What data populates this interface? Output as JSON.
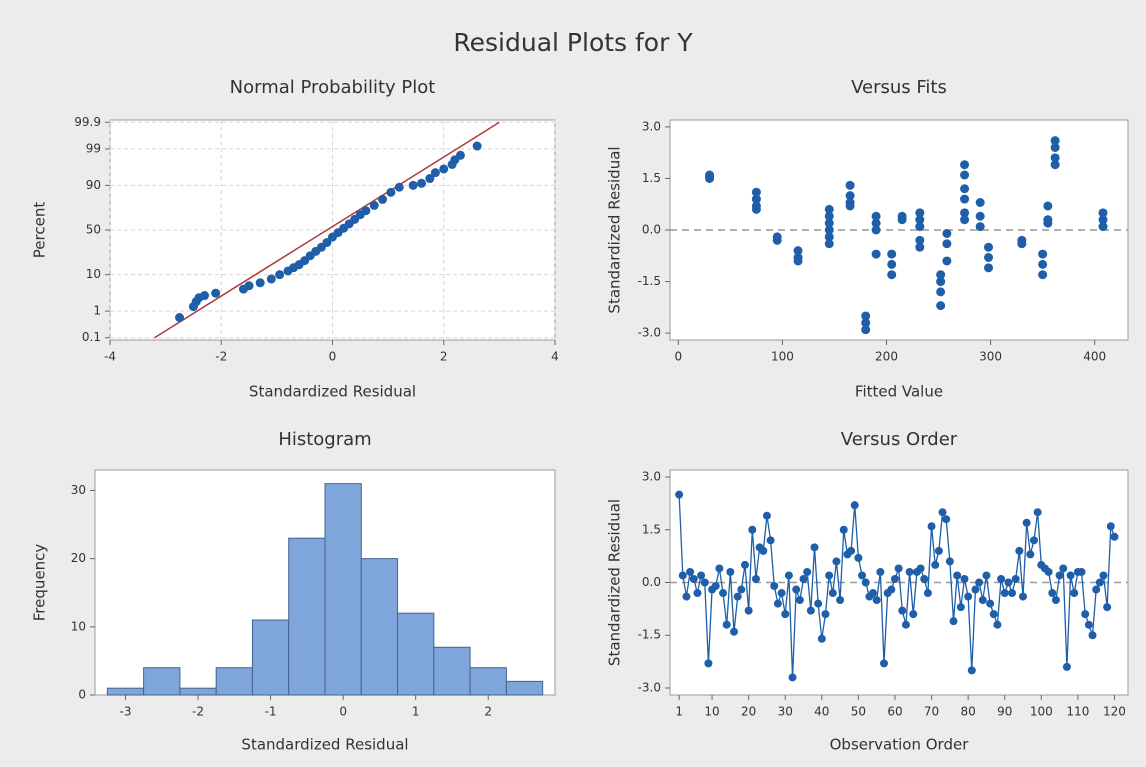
{
  "title": "Residual Plots for Y",
  "chart_data": [
    {
      "type": "scatter",
      "title": "Normal Probability Plot",
      "x_label": "Standardized Residual",
      "y_label": "Percent",
      "yscale": "probability",
      "grid": true,
      "color": "#1f5ea8",
      "xlim": [
        -4,
        4
      ],
      "xticks": [
        -4,
        -2,
        0,
        2,
        4
      ],
      "ylim": [
        0.08,
        99.92
      ],
      "yticks": [
        0.1,
        1,
        10,
        50,
        90,
        99,
        99.9
      ],
      "x": [
        -2.75,
        -2.5,
        -2.45,
        -2.4,
        -2.3,
        -2.1,
        -1.6,
        -1.5,
        -1.3,
        -1.1,
        -0.95,
        -0.8,
        -0.7,
        -0.6,
        -0.5,
        -0.4,
        -0.3,
        -0.2,
        -0.1,
        0,
        0.1,
        0.2,
        0.3,
        0.4,
        0.5,
        0.6,
        0.75,
        0.9,
        1.05,
        1.2,
        1.45,
        1.6,
        1.75,
        1.85,
        2.0,
        2.15,
        2.2,
        2.3,
        2.6
      ],
      "values": [
        0.6,
        1.4,
        2.0,
        2.6,
        3.0,
        3.5,
        4.5,
        5.5,
        6.5,
        8,
        10,
        12,
        14,
        16,
        19,
        23,
        27,
        31,
        36,
        42,
        47,
        52,
        57,
        62,
        67,
        71,
        76,
        81,
        86,
        89,
        90,
        91,
        93,
        95,
        96,
        97,
        97.8,
        98.4,
        99.2
      ],
      "reference_line": {
        "x": [
          -3.2,
          3.0
        ],
        "y": [
          0.1,
          99.9
        ],
        "color": "#b03a3a"
      }
    },
    {
      "type": "scatter",
      "title": "Versus Fits",
      "x_label": "Fitted Value",
      "y_label": "Standardized Residual",
      "color": "#1f5ea8",
      "hline": 0,
      "xlim": [
        -8,
        432
      ],
      "xticks": [
        0,
        100,
        200,
        300,
        400
      ],
      "ylim": [
        -3.2,
        3.2
      ],
      "yticks": [
        {
          "value": -3,
          "label": "-3.0"
        },
        {
          "value": -1.5,
          "label": "-1.5"
        },
        {
          "value": 0,
          "label": "0.0"
        },
        {
          "value": 1.5,
          "label": "1.5"
        },
        {
          "value": 3,
          "label": "3.0"
        }
      ],
      "x": [
        30,
        30,
        30,
        75,
        75,
        75,
        75,
        95,
        95,
        115,
        115,
        115,
        145,
        145,
        145,
        145,
        145,
        145,
        165,
        165,
        165,
        165,
        180,
        180,
        180,
        190,
        190,
        190,
        190,
        205,
        205,
        205,
        215,
        215,
        232,
        232,
        232,
        232,
        232,
        252,
        252,
        252,
        252,
        258,
        258,
        258,
        275,
        275,
        275,
        275,
        275,
        275,
        290,
        290,
        290,
        298,
        298,
        298,
        330,
        330,
        350,
        350,
        350,
        355,
        355,
        355,
        362,
        362,
        362,
        362,
        408,
        408,
        408
      ],
      "values": [
        1.6,
        1.5,
        1.55,
        1.1,
        0.9,
        0.7,
        0.6,
        -0.2,
        -0.3,
        -0.6,
        -0.8,
        -0.9,
        0.6,
        0.4,
        0.2,
        0.0,
        -0.2,
        -0.4,
        1.3,
        1.0,
        0.8,
        0.7,
        -2.5,
        -2.7,
        -2.9,
        0.4,
        0.2,
        0.0,
        -0.7,
        -0.7,
        -1.0,
        -1.3,
        0.4,
        0.3,
        0.5,
        0.3,
        0.1,
        -0.3,
        -0.5,
        -1.3,
        -1.5,
        -1.8,
        -2.2,
        -0.1,
        -0.4,
        -0.9,
        1.9,
        1.6,
        1.2,
        0.9,
        0.5,
        0.3,
        0.8,
        0.4,
        0.1,
        -0.5,
        -0.8,
        -1.1,
        -0.3,
        -0.4,
        -0.7,
        -1.0,
        -1.3,
        0.7,
        0.3,
        0.2,
        2.6,
        2.4,
        2.1,
        1.9,
        0.5,
        0.3,
        0.1
      ]
    },
    {
      "type": "histogram",
      "title": "Histogram",
      "x_label": "Standardized Residual",
      "y_label": "Frequency",
      "color": "#7fa6da",
      "xlim": [
        -3.42,
        2.92
      ],
      "xticks": [
        -3,
        -2,
        -1,
        0,
        1,
        2
      ],
      "ylim": [
        0,
        33
      ],
      "yticks": [
        0,
        10,
        20,
        30
      ],
      "bins": [
        -3.25,
        -2.75,
        -2.25,
        -1.75,
        -1.25,
        -0.75,
        -0.25,
        0.25,
        0.75,
        1.25,
        1.75,
        2.25,
        2.75
      ],
      "values": [
        1,
        4,
        1,
        4,
        11,
        23,
        31,
        20,
        12,
        7,
        4,
        2
      ]
    },
    {
      "type": "line",
      "title": "Versus Order",
      "x_label": "Observation Order",
      "y_label": "Standardized Residual",
      "color": "#1f5ea8",
      "hline": 0,
      "xlim": [
        -1.5,
        123.7
      ],
      "xticks": [
        1,
        10,
        20,
        30,
        40,
        50,
        60,
        70,
        80,
        90,
        100,
        110,
        120
      ],
      "ylim": [
        -3.2,
        3.2
      ],
      "yticks": [
        {
          "value": -3,
          "label": "-3.0"
        },
        {
          "value": -1.5,
          "label": "-1.5"
        },
        {
          "value": 0,
          "label": "0.0"
        },
        {
          "value": 1.5,
          "label": "1.5"
        },
        {
          "value": 3,
          "label": "3.0"
        }
      ],
      "x": [
        1,
        2,
        3,
        4,
        5,
        6,
        7,
        8,
        9,
        10,
        11,
        12,
        13,
        14,
        15,
        16,
        17,
        18,
        19,
        20,
        21,
        22,
        23,
        24,
        25,
        26,
        27,
        28,
        29,
        30,
        31,
        32,
        33,
        34,
        35,
        36,
        37,
        38,
        39,
        40,
        41,
        42,
        43,
        44,
        45,
        46,
        47,
        48,
        49,
        50,
        51,
        52,
        53,
        54,
        55,
        56,
        57,
        58,
        59,
        60,
        61,
        62,
        63,
        64,
        65,
        66,
        67,
        68,
        69,
        70,
        71,
        72,
        73,
        74,
        75,
        76,
        77,
        78,
        79,
        80,
        81,
        82,
        83,
        84,
        85,
        86,
        87,
        88,
        89,
        90,
        91,
        92,
        93,
        94,
        95,
        96,
        97,
        98,
        99,
        100,
        101,
        102,
        103,
        104,
        105,
        106,
        107,
        108,
        109,
        110,
        111,
        112,
        113,
        114,
        115,
        116,
        117,
        118,
        119,
        120
      ],
      "values": [
        2.5,
        0.2,
        -0.4,
        0.3,
        0.1,
        -0.3,
        0.2,
        0.0,
        -2.3,
        -0.2,
        -0.1,
        0.4,
        -0.3,
        -1.2,
        0.3,
        -1.4,
        -0.4,
        -0.2,
        0.5,
        -0.8,
        1.5,
        0.1,
        1.0,
        0.9,
        1.9,
        1.2,
        -0.1,
        -0.6,
        -0.3,
        -0.9,
        0.2,
        -2.7,
        -0.2,
        -0.5,
        0.1,
        0.3,
        -0.8,
        1.0,
        -0.6,
        -1.6,
        -0.9,
        0.2,
        -0.3,
        0.6,
        -0.5,
        1.5,
        0.8,
        0.9,
        2.2,
        0.7,
        0.2,
        0.0,
        -0.4,
        -0.3,
        -0.5,
        0.3,
        -2.3,
        -0.3,
        -0.2,
        0.1,
        0.4,
        -0.8,
        -1.2,
        0.3,
        -0.9,
        0.3,
        0.4,
        0.1,
        -0.3,
        1.6,
        0.5,
        0.9,
        2.0,
        1.8,
        0.6,
        -1.1,
        0.2,
        -0.7,
        0.1,
        -0.4,
        -2.5,
        -0.2,
        0.0,
        -0.5,
        0.2,
        -0.6,
        -0.9,
        -1.2,
        0.1,
        -0.3,
        0.0,
        -0.3,
        0.1,
        0.9,
        -0.4,
        1.7,
        0.8,
        1.2,
        2.0,
        0.5,
        0.4,
        0.3,
        -0.3,
        -0.5,
        0.2,
        0.4,
        -2.4,
        0.2,
        -0.3,
        0.3,
        0.3,
        -0.9,
        -1.2,
        -1.5,
        -0.2,
        0.0,
        0.2,
        -0.7,
        1.6,
        1.3
      ]
    }
  ]
}
